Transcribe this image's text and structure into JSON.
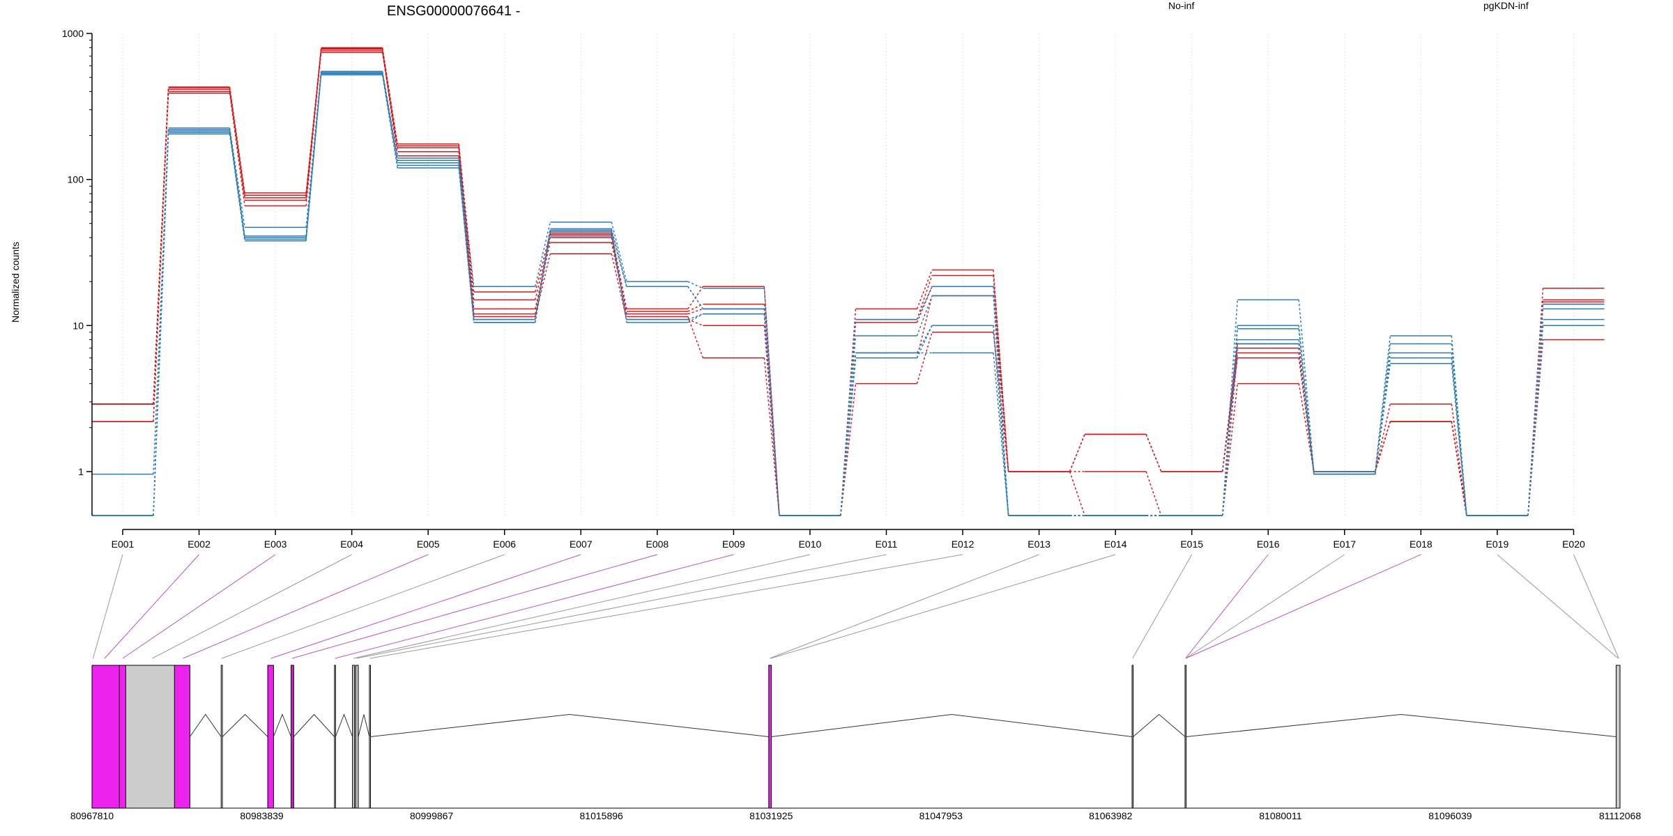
{
  "chart_data": {
    "type": "line",
    "title": "ENSG00000076641 -",
    "ylabel": "Normalized counts",
    "yscale": "log",
    "ylim": [
      0.5,
      1000
    ],
    "yticks": [
      1,
      10,
      100,
      1000
    ],
    "ytick_labels": [
      "1",
      "10",
      "100",
      "1000"
    ],
    "grid": "vertical dotted",
    "legend": [
      {
        "label": "No-inf",
        "color": "#d7191c",
        "position": "top-center-right"
      },
      {
        "label": "pgKDN-inf",
        "color": "#2c7bb6",
        "position": "top-right"
      }
    ],
    "categories": [
      "E001",
      "E002",
      "E003",
      "E004",
      "E005",
      "E006",
      "E007",
      "E008",
      "E009",
      "E010",
      "E011",
      "E012",
      "E013",
      "E014",
      "E015",
      "E016",
      "E017",
      "E018",
      "E019",
      "E020"
    ],
    "series": [
      {
        "group": "No-inf",
        "color": "#d7191c",
        "values": [
          2.9,
          430,
          81,
          790,
          175,
          17,
          43,
          13,
          18.5,
          0.5,
          13,
          24,
          1,
          1.8,
          1,
          7.5,
          1,
          2.9,
          0.5,
          18
        ]
      },
      {
        "group": "No-inf",
        "color": "#d7191c",
        "values": [
          2.2,
          415,
          78,
          760,
          165,
          15,
          40,
          12.5,
          14,
          0.5,
          11,
          22,
          1,
          1.8,
          1,
          7,
          1,
          2.2,
          0.5,
          15
        ]
      },
      {
        "group": "No-inf",
        "color": "#d7191c",
        "values": [
          2.9,
          400,
          75,
          740,
          155,
          13,
          37,
          12,
          13,
          0.5,
          10.5,
          18.5,
          1,
          1.8,
          1,
          6,
          1,
          2.2,
          0.5,
          14.5
        ]
      },
      {
        "group": "No-inf",
        "color": "#d7191c",
        "values": [
          2.2,
          390,
          66,
          780,
          145,
          11.5,
          31,
          11,
          10,
          0.5,
          6,
          16,
          1,
          1,
          0.5,
          4,
          1,
          2.2,
          0.5,
          14
        ]
      },
      {
        "group": "No-inf",
        "color": "#d7191c",
        "values": [
          2.9,
          425,
          72,
          800,
          170,
          12,
          42,
          11.5,
          6,
          0.5,
          4,
          9,
          1,
          0.5,
          0.5,
          6.5,
          1,
          2.2,
          0.5,
          8
        ]
      },
      {
        "group": "pgKDN-inf",
        "color": "#2c7bb6",
        "values": [
          0.96,
          225,
          47,
          550,
          140,
          18.5,
          51,
          20,
          18,
          0.5,
          11,
          18.5,
          0.5,
          0.5,
          0.5,
          15,
          1,
          8.5,
          0.5,
          14
        ]
      },
      {
        "group": "pgKDN-inf",
        "color": "#2c7bb6",
        "values": [
          0.5,
          215,
          41,
          540,
          130,
          11,
          46,
          18.5,
          13,
          0.5,
          8.5,
          16,
          0.5,
          0.5,
          0.5,
          10,
          0.96,
          7.5,
          0.5,
          13
        ]
      },
      {
        "group": "pgKDN-inf",
        "color": "#2c7bb6",
        "values": [
          0.5,
          220,
          40,
          530,
          125,
          11,
          44,
          18.5,
          13,
          0.5,
          6.5,
          10,
          0.5,
          0.5,
          0.5,
          9.5,
          0.96,
          6.5,
          0.5,
          11
        ]
      },
      {
        "group": "pgKDN-inf",
        "color": "#2c7bb6",
        "values": [
          0.5,
          205,
          38,
          520,
          120,
          10.5,
          41,
          11,
          12,
          0.5,
          6,
          10,
          0.5,
          0.5,
          0.5,
          8,
          0.96,
          6,
          0.5,
          10
        ]
      },
      {
        "group": "pgKDN-inf",
        "color": "#2c7bb6",
        "values": [
          0.5,
          210,
          39,
          535,
          135,
          10.5,
          45,
          10.5,
          12,
          0.5,
          6.5,
          6.5,
          0.5,
          0.5,
          0.5,
          7.5,
          0.96,
          5.5,
          0.5,
          10
        ]
      }
    ],
    "gene_model": {
      "coordinates": [
        "80967810",
        "80983839",
        "80999867",
        "81015896",
        "81031925",
        "81047953",
        "81063982",
        "81080011",
        "81096039",
        "81112068"
      ],
      "bins": [
        {
          "start": 80967810,
          "end": 80970400,
          "color": "#ee22ee"
        },
        {
          "start": 80970400,
          "end": 80971000,
          "color": "#ee22ee"
        },
        {
          "start": 80971000,
          "end": 80975600,
          "color": "#cccccc"
        },
        {
          "start": 80975600,
          "end": 80977050,
          "color": "#ee22ee"
        },
        {
          "start": 80980000,
          "end": 80980120,
          "color": "#ffffff"
        },
        {
          "start": 80984400,
          "end": 80984950,
          "color": "#ee22ee"
        },
        {
          "start": 80986600,
          "end": 80986850,
          "color": "#cc22cc"
        },
        {
          "start": 80990700,
          "end": 80990800,
          "color": "#ffffff"
        },
        {
          "start": 80992400,
          "end": 80992600,
          "color": "#cccccc"
        },
        {
          "start": 80992700,
          "end": 80992950,
          "color": "#cccccc"
        },
        {
          "start": 80994000,
          "end": 80994100,
          "color": "#ffffff"
        },
        {
          "start": 81031700,
          "end": 81031950,
          "color": "#ee22ee"
        },
        {
          "start": 81066000,
          "end": 81066100,
          "color": "#ffffff"
        },
        {
          "start": 81071000,
          "end": 81071100,
          "color": "#ffffff"
        },
        {
          "start": 81111700,
          "end": 81112068,
          "color": "#cccccc"
        }
      ],
      "bin_link_colors": [
        "#999999",
        "#bb55bb",
        "#bb55bb",
        "#999999",
        "#bb55bb",
        "#999999",
        "#bb55bb",
        "#bb55bb",
        "#bb55bb",
        "#999999",
        "#999999",
        "#999999",
        "#999999",
        "#999999",
        "#999999",
        "#bb55bb",
        "#999999",
        "#bb55bb",
        "#999999",
        "#999999"
      ],
      "bin_link_targets": [
        80967900,
        80969000,
        80970700,
        80973500,
        80976400,
        80980050,
        80984700,
        80986700,
        80990750,
        80992500,
        80992800,
        80994050,
        81031800,
        81031900,
        81066050,
        81071050,
        81071060,
        81071070,
        81111900,
        81111950
      ]
    }
  }
}
